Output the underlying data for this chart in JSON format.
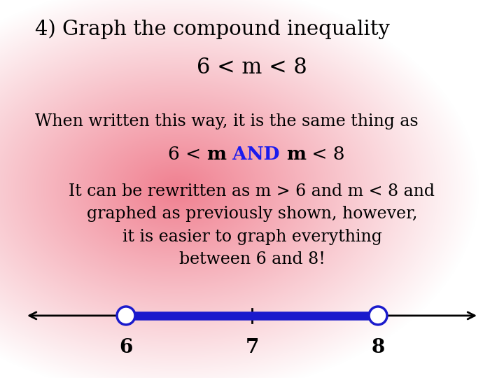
{
  "title_line1": "4) Graph the compound inequality",
  "title_line2": "6 < m < 8",
  "text1": "When written this way, it is the same thing as",
  "text2_parts": [
    "6 < ",
    "m",
    " AND ",
    "m",
    " < 8"
  ],
  "text2_colors": [
    "#000000",
    "#000000",
    "#1a1aee",
    "#000000",
    "#000000"
  ],
  "text2_bold": [
    false,
    true,
    true,
    true,
    false
  ],
  "text3_line1": "It can be rewritten as m > 6 and m < 8 and",
  "text3_line2": "graphed as previously shown, however,",
  "text3_line3": "it is easier to graph everything",
  "text3_line4": "between 6 and 8!",
  "highlight_color": "#1a1acc",
  "open_circle_color": "#1a1acc",
  "tick_label_fontsize": 20,
  "title_fontsize": 21,
  "body_fontsize": 17,
  "bg_pink": "#f08090",
  "bg_white": "#ffffff"
}
